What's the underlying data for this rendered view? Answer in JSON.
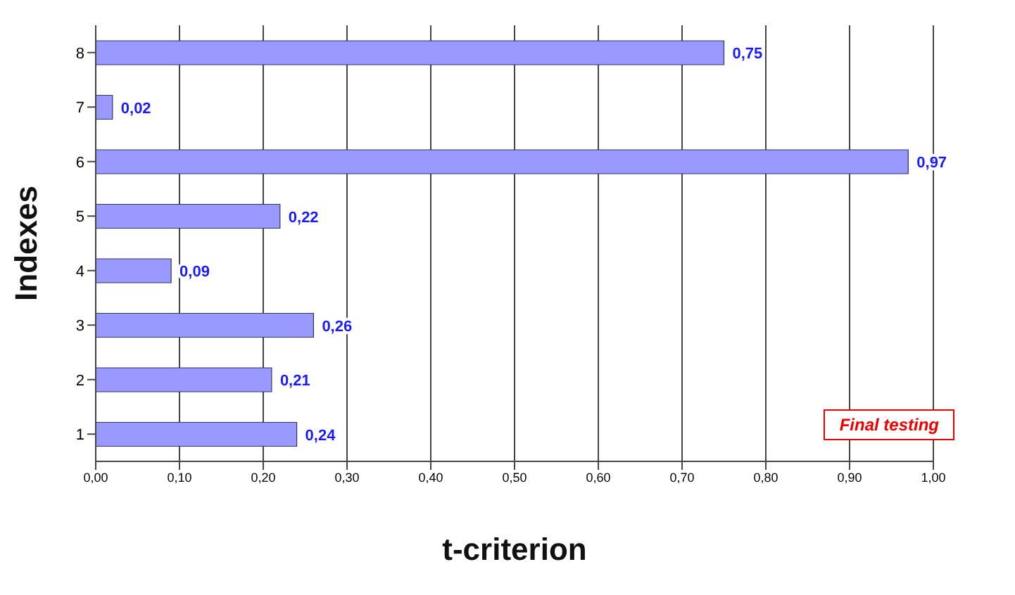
{
  "chart_data": {
    "type": "bar",
    "orientation": "horizontal",
    "xlabel": "t-criterion",
    "ylabel": "Indexes",
    "categories": [
      "8",
      "7",
      "6",
      "5",
      "4",
      "3",
      "2",
      "1"
    ],
    "values": [
      0.75,
      0.02,
      0.97,
      0.22,
      0.09,
      0.26,
      0.21,
      0.24
    ],
    "value_labels": [
      "0,75",
      "0,02",
      "0,97",
      "0,22",
      "0,09",
      "0,26",
      "0,21",
      "0,24"
    ],
    "color": "#9999ff",
    "xlim": [
      0,
      1
    ],
    "xticks": [
      {
        "value": 0,
        "label": "0,00"
      },
      {
        "value": 0.1,
        "label": "0,10"
      },
      {
        "value": 0.2,
        "label": "0,20"
      },
      {
        "value": 0.3,
        "label": "0,30"
      },
      {
        "value": 0.4,
        "label": "0,40"
      },
      {
        "value": 0.5,
        "label": "0,50"
      },
      {
        "value": 0.6,
        "label": "0,60"
      },
      {
        "value": 0.7,
        "label": "0,70"
      },
      {
        "value": 0.8,
        "label": "0,80"
      },
      {
        "value": 0.9,
        "label": "0,90"
      },
      {
        "value": 1,
        "label": "1,00"
      }
    ],
    "grid": "x",
    "annotations": [
      "Final testing"
    ]
  }
}
